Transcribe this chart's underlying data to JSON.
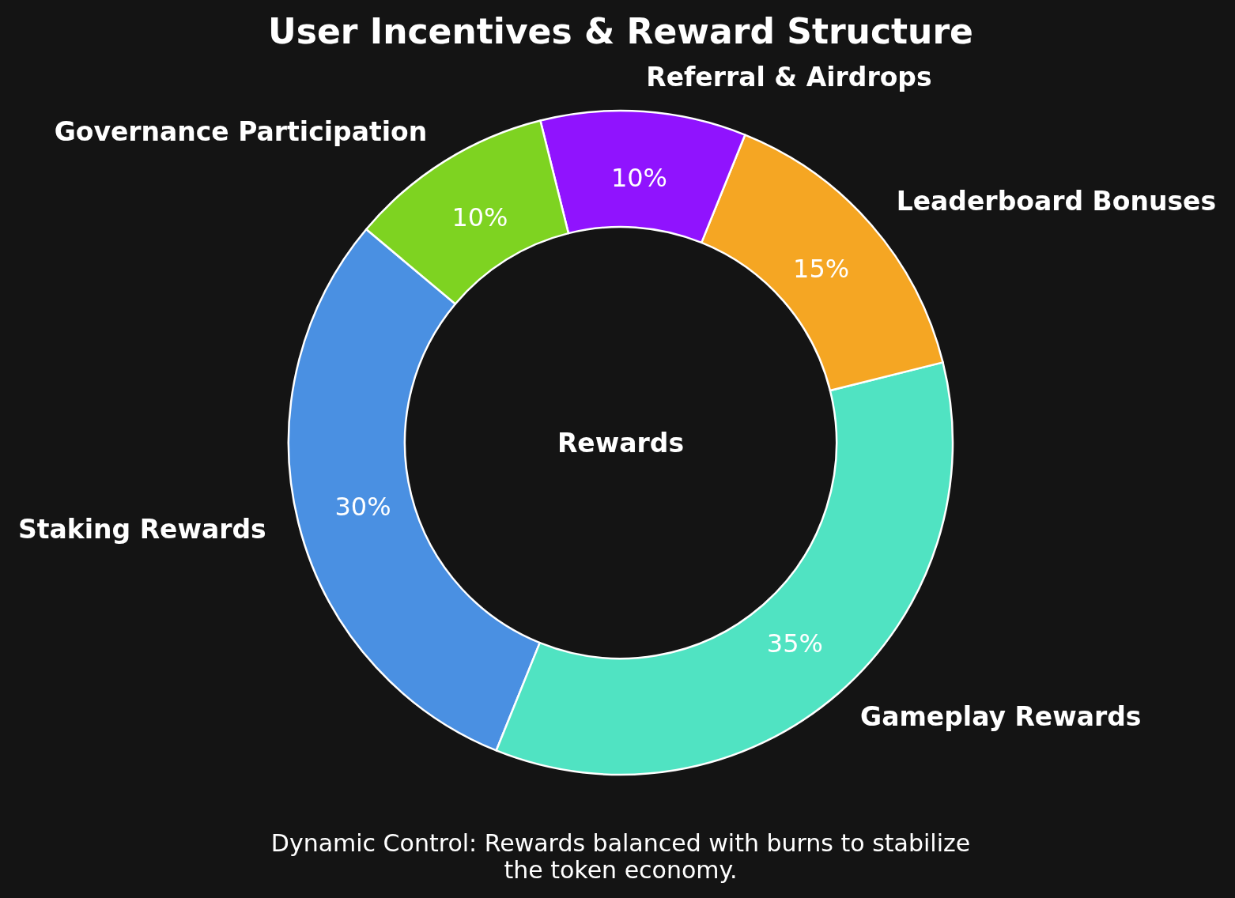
{
  "chart_data": {
    "type": "donut",
    "title": "User Incentives & Reward Structure",
    "categories": [
      "Staking Rewards",
      "Gameplay Rewards",
      "Leaderboard Bonuses",
      "Referral & Airdrops",
      "Governance Participation"
    ],
    "values": [
      30,
      35,
      15,
      10,
      10
    ],
    "colors": [
      "#4a90e2",
      "#50e3c2",
      "#f5a623",
      "#9013fe",
      "#7ed321"
    ],
    "value_labels": [
      "30%",
      "35%",
      "15%",
      "10%",
      "10%"
    ],
    "annotations": [
      "Rewards",
      "Dynamic Control: Rewards balanced with burns to stabilize the token economy."
    ]
  }
}
